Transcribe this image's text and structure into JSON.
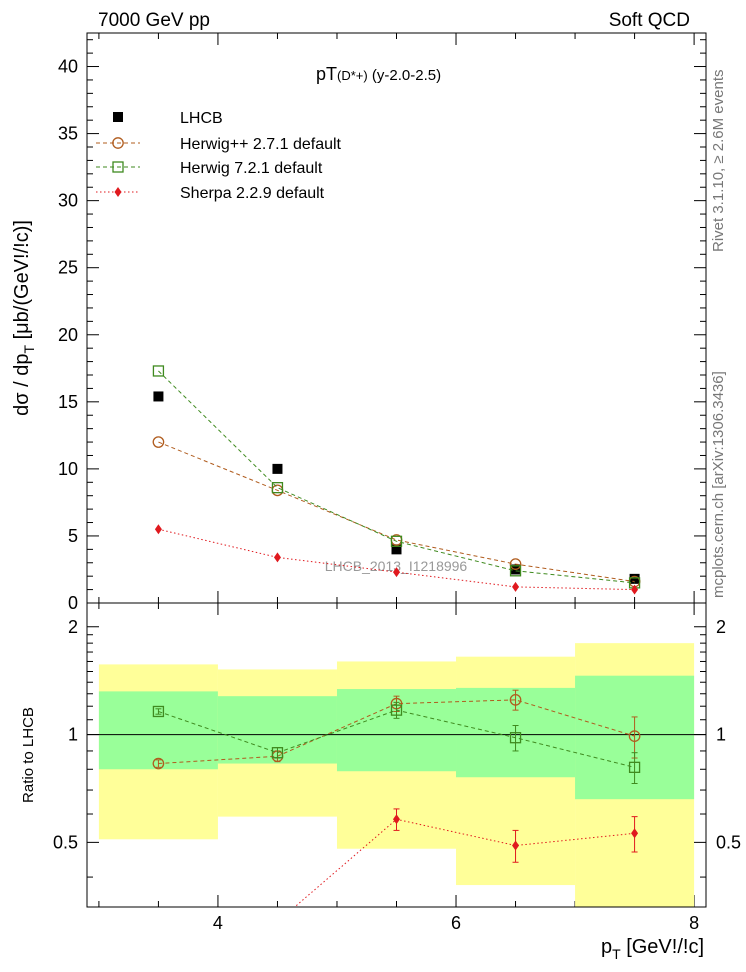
{
  "header": {
    "left": "7000 GeV pp",
    "right": "Soft QCD"
  },
  "side_text": {
    "rivet": "Rivet 3.1.10, ≥ 2.6M events",
    "mcplots": "mcplots.cern.ch [arXiv:1306.3436]"
  },
  "chart_data": [
    {
      "type": "scatter",
      "title": "pT(D*+) (y-2.0-2.5)",
      "title_main": "pT",
      "title_particle": "(D*+)",
      "title_range": " (y-2.0-2.5)",
      "ylabel": "dσ / dp_T [μb/(GeV!/!c)]",
      "xlim": [
        2.9,
        8.1
      ],
      "ylim": [
        0,
        42.5
      ],
      "y_ticks": [
        0,
        5,
        10,
        15,
        20,
        25,
        30,
        35,
        40
      ],
      "watermark": "LHCB_2013_I1218996",
      "legend_position": "top-left",
      "x": [
        3.5,
        4.5,
        5.5,
        6.5,
        7.5
      ],
      "series": [
        {
          "name": "LHCB",
          "values": [
            15.4,
            10.0,
            4.0,
            2.5,
            1.8
          ],
          "color": "#000000",
          "marker": "filled-square"
        },
        {
          "name": "Herwig++ 2.7.1 default",
          "values": [
            12.0,
            8.4,
            4.7,
            2.9,
            1.6
          ],
          "color": "#b05c1e",
          "marker": "open-circle",
          "line": "dashed"
        },
        {
          "name": "Herwig 7.2.1 default",
          "values": [
            17.3,
            8.6,
            4.6,
            2.4,
            1.5
          ],
          "color": "#3f8a1f",
          "marker": "open-square",
          "line": "dashed"
        },
        {
          "name": "Sherpa 2.2.9 default",
          "values": [
            5.5,
            3.4,
            2.3,
            1.2,
            1.0
          ],
          "color": "#e0191e",
          "marker": "filled-diamond",
          "line": "dotted"
        }
      ]
    },
    {
      "type": "scatter",
      "ylabel": "Ratio to LHCB",
      "xlabel": "p_T [GeV!/!c]",
      "xlim": [
        2.9,
        8.1
      ],
      "ylim": [
        0.33,
        2.33
      ],
      "y_ticks": [
        0.5,
        1,
        2
      ],
      "x_ticks": [
        4,
        6,
        8
      ],
      "reference_line": 1,
      "bands": [
        {
          "x0": 3,
          "x1": 4,
          "inner": [
            0.8,
            1.32
          ],
          "outer": [
            0.51,
            1.57
          ]
        },
        {
          "x0": 4,
          "x1": 5,
          "inner": [
            0.83,
            1.28
          ],
          "outer": [
            0.59,
            1.52
          ]
        },
        {
          "x0": 5,
          "x1": 6,
          "inner": [
            0.79,
            1.34
          ],
          "outer": [
            0.48,
            1.6
          ]
        },
        {
          "x0": 6,
          "x1": 7,
          "inner": [
            0.76,
            1.35
          ],
          "outer": [
            0.38,
            1.65
          ]
        },
        {
          "x0": 7,
          "x1": 8,
          "inner": [
            0.66,
            1.46
          ],
          "outer": [
            0.3,
            1.8
          ]
        }
      ],
      "band_colors": {
        "inner": "#99ff99",
        "outer": "#ffff99"
      },
      "x": [
        3.5,
        4.5,
        5.5,
        6.5,
        7.5
      ],
      "series": [
        {
          "name": "Herwig++ 2.7.1 default",
          "values": [
            0.83,
            0.87,
            1.22,
            1.25,
            0.99
          ],
          "errors": [
            0.02,
            0.03,
            0.06,
            0.08,
            0.13
          ],
          "color": "#b05c1e",
          "marker": "open-circle",
          "line": "dashed"
        },
        {
          "name": "Herwig 7.2.1 default",
          "values": [
            1.16,
            0.89,
            1.17,
            0.98,
            0.81
          ],
          "errors": [
            0.02,
            0.03,
            0.06,
            0.08,
            0.08
          ],
          "color": "#3f8a1f",
          "marker": "open-square",
          "line": "dashed"
        },
        {
          "name": "Sherpa 2.2.9 default",
          "values": [
            0.31,
            0.3,
            0.58,
            0.49,
            0.53
          ],
          "errors": [
            0.02,
            0.02,
            0.04,
            0.05,
            0.06
          ],
          "color": "#e0191e",
          "marker": "filled-diamond",
          "line": "dotted"
        }
      ]
    }
  ]
}
